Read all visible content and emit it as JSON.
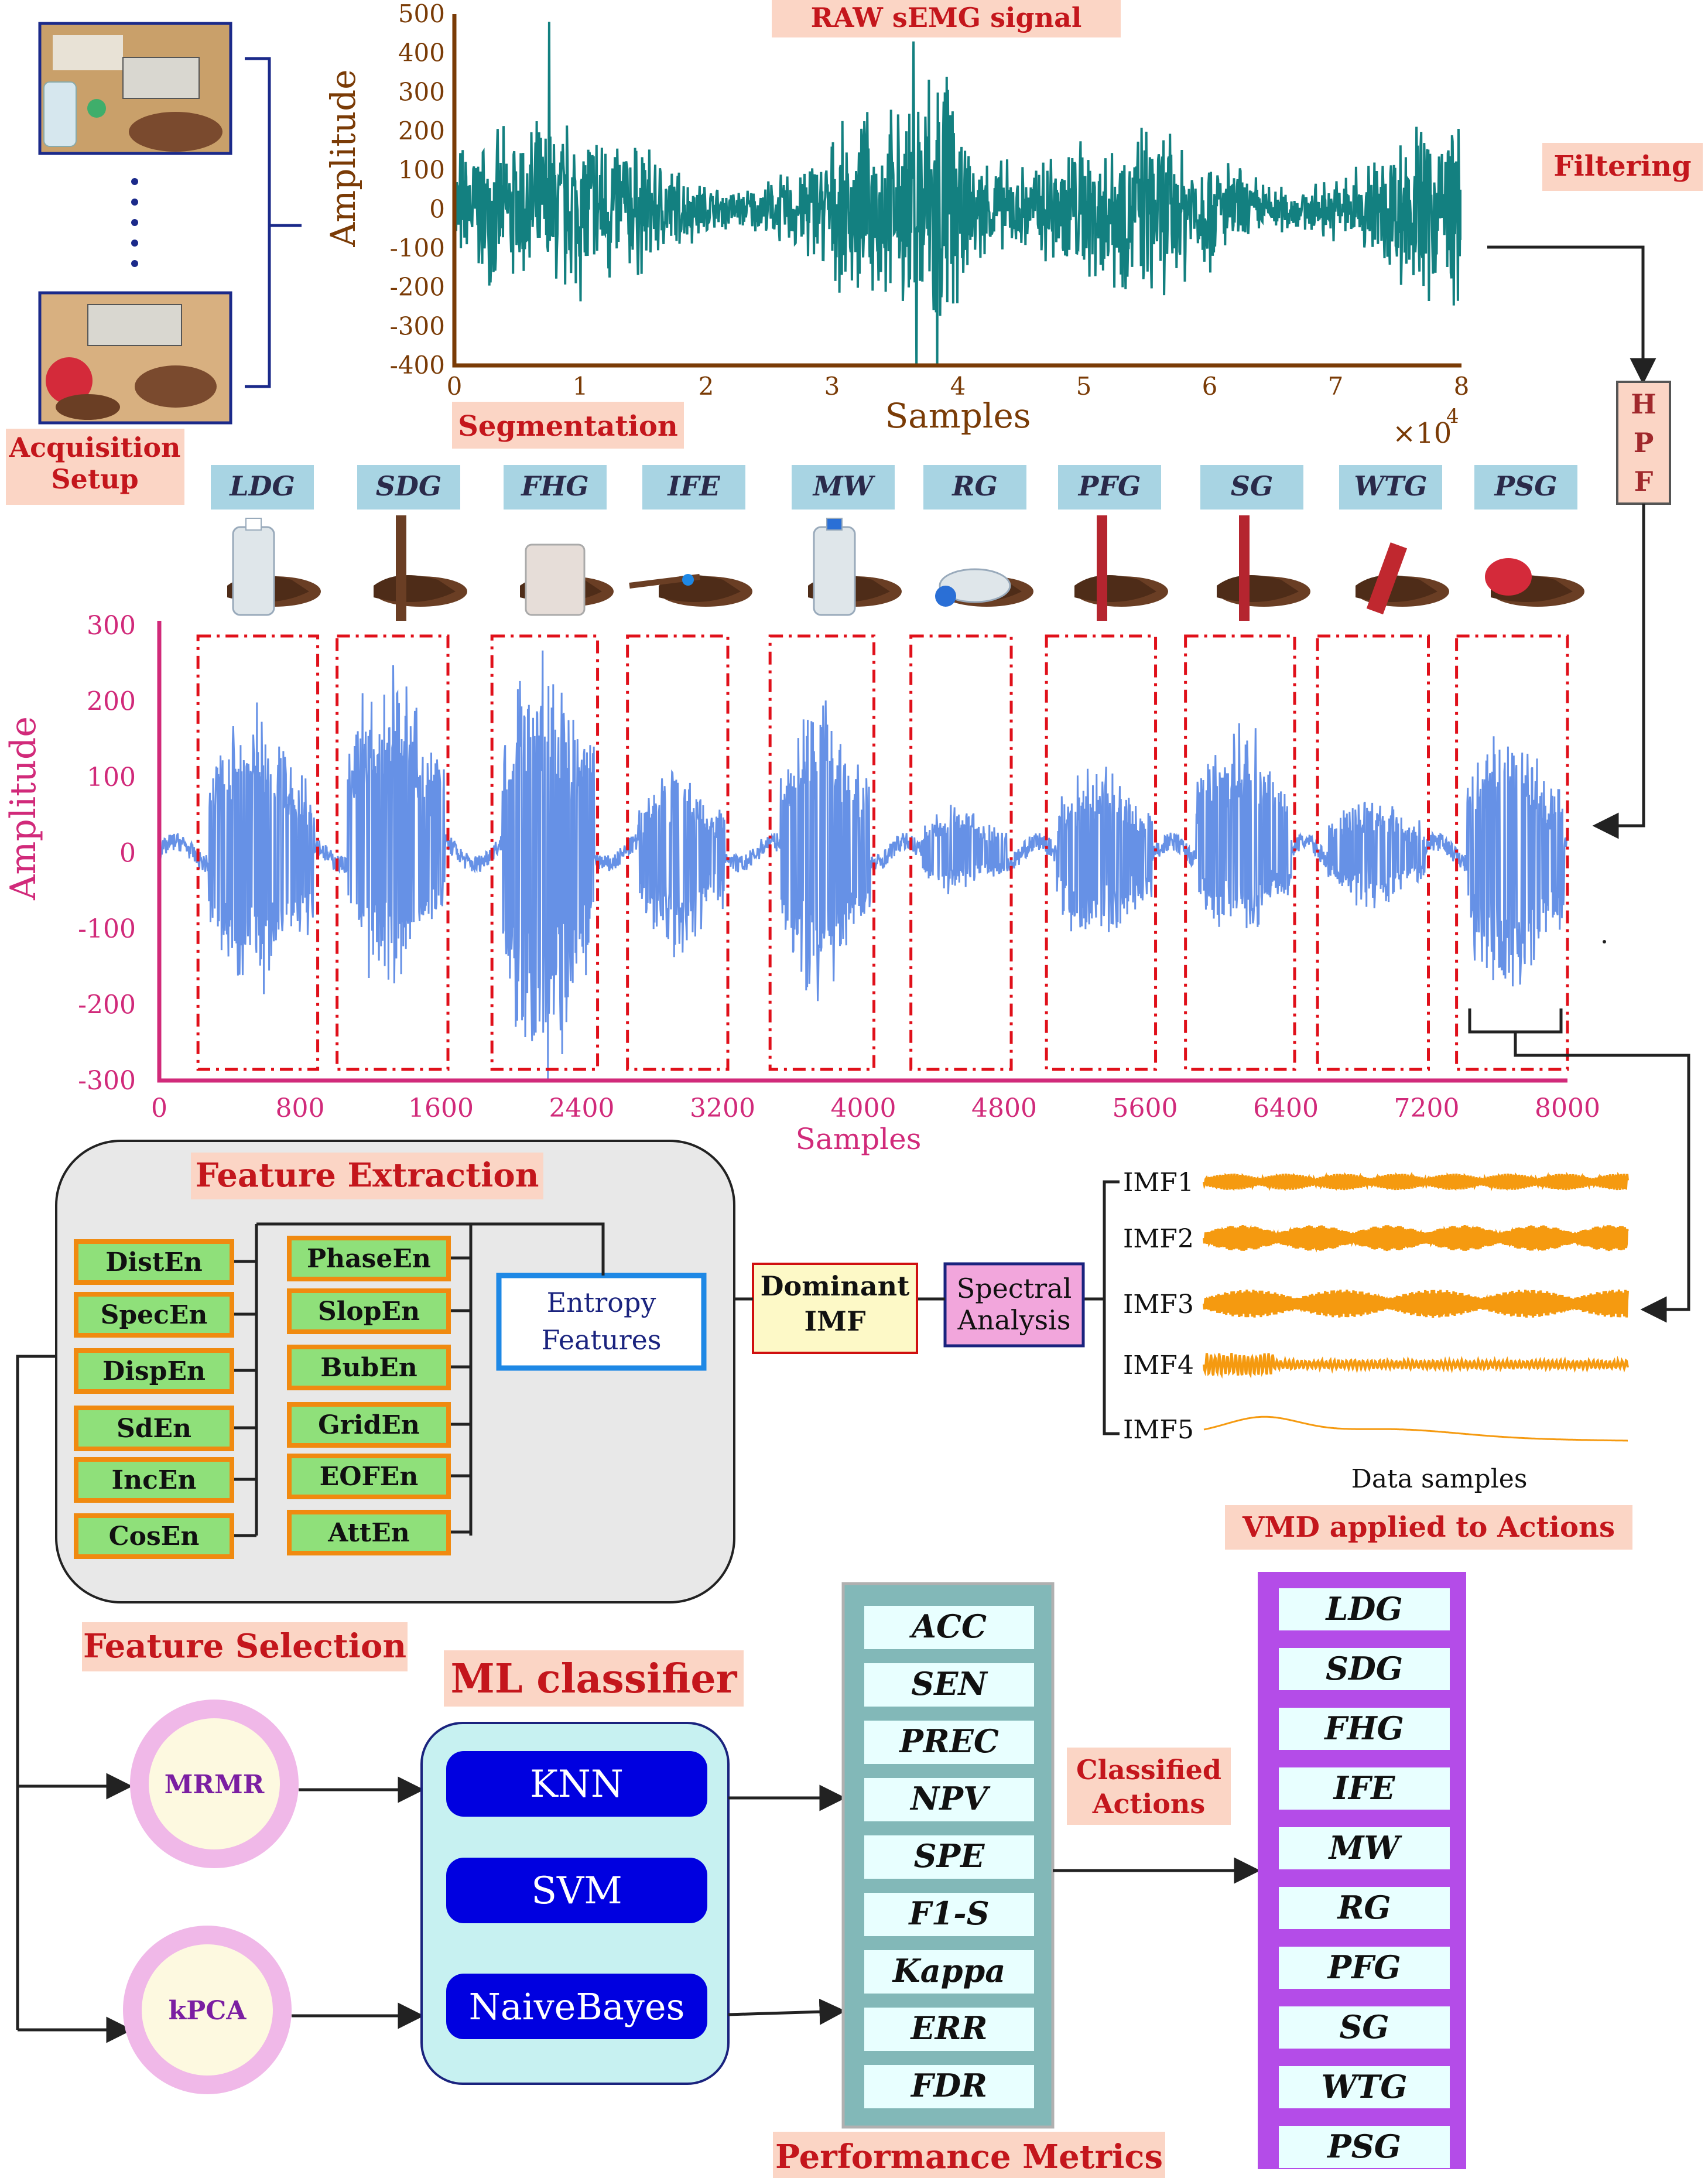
{
  "acquisition": {
    "label_line1": "Acquisition",
    "label_line2": "Setup",
    "photo1": "acquisition-photo-bottle",
    "photo2": "acquisition-photo-ball"
  },
  "raw_chart": {
    "title": "RAW sEMG signal",
    "ylabel": "Amplitude",
    "xlabel": "Samples",
    "x_multiplier": "×10",
    "x_multiplier_exp": "4",
    "yticks": [
      "500",
      "400",
      "300",
      "200",
      "100",
      "0",
      "-100",
      "-200",
      "-300",
      "-400"
    ],
    "xticks": [
      "0",
      "1",
      "2",
      "3",
      "4",
      "5",
      "6",
      "7",
      "8"
    ],
    "color": "#138080",
    "axis_color": "#7a3b06"
  },
  "filtering": {
    "label": "Filtering",
    "hpf_letters": [
      "H",
      "P",
      "F"
    ]
  },
  "segmentation": {
    "label": "Segmentation"
  },
  "actions": [
    "LDG",
    "SDG",
    "FHG",
    "IFE",
    "MW",
    "RG",
    "PFG",
    "SG",
    "WTG",
    "PSG"
  ],
  "seg_chart": {
    "ylabel": "Amplitude",
    "xlabel": "Samples",
    "yticks": [
      "300",
      "200",
      "100",
      "0",
      "-100",
      "-200",
      "-300"
    ],
    "xticks": [
      "0",
      "800",
      "1600",
      "2400",
      "3200",
      "4000",
      "4800",
      "5600",
      "6400",
      "7200",
      "8000"
    ],
    "axis_color": "#d12a7a",
    "signal_color": "#6691e6",
    "box_color": "#e0101a"
  },
  "chart_data": {
    "type": "line",
    "title": "",
    "xlabel": "Samples",
    "ylabel": "Amplitude",
    "xlim": [
      0,
      8000
    ],
    "ylim": [
      -300,
      300
    ],
    "segments": [
      {
        "name": "LDG",
        "start": 280,
        "end": 880,
        "peak": [
          190,
          -190
        ]
      },
      {
        "name": "SDG",
        "start": 1070,
        "end": 1620,
        "peak": [
          250,
          -175
        ]
      },
      {
        "name": "FHG",
        "start": 1950,
        "end": 2470,
        "peak": [
          275,
          -300
        ]
      },
      {
        "name": "IFE",
        "start": 2720,
        "end": 3210,
        "peak": [
          115,
          -135
        ]
      },
      {
        "name": "MW",
        "start": 3530,
        "end": 4040,
        "peak": [
          220,
          -195
        ]
      },
      {
        "name": "RG",
        "start": 4330,
        "end": 4820,
        "peak": [
          65,
          -55
        ]
      },
      {
        "name": "PFG",
        "start": 5100,
        "end": 5640,
        "peak": [
          115,
          -125
        ]
      },
      {
        "name": "SG",
        "start": 5890,
        "end": 6430,
        "peak": [
          180,
          -110
        ]
      },
      {
        "name": "WTG",
        "start": 6640,
        "end": 7190,
        "peak": [
          75,
          -70
        ]
      },
      {
        "name": "PSG",
        "start": 7430,
        "end": 7980,
        "peak": [
          165,
          -205
        ]
      }
    ]
  },
  "vmd": {
    "imfs": [
      "IMF1",
      "IMF2",
      "IMF3",
      "IMF4",
      "IMF5"
    ],
    "xlabel": "Data samples",
    "label": "VMD applied to Actions",
    "color": "#f59a10"
  },
  "spectral": {
    "line1": "Spectral",
    "line2": "Analysis"
  },
  "dominant": {
    "line1": "Dominant",
    "line2": "IMF"
  },
  "entropy": {
    "line1": "Entropy",
    "line2": "Features"
  },
  "feature_extraction": {
    "title": "Feature Extraction",
    "left": [
      "DistEn",
      "SpecEn",
      "DispEn",
      "SdEn",
      "IncEn",
      "CosEn"
    ],
    "right": [
      "PhaseEn",
      "SlopEn",
      "BubEn",
      "GridEn",
      "EOFEn",
      "AttEn"
    ]
  },
  "feature_selection": {
    "title": "Feature Selection",
    "methods": [
      "MRMR",
      "kPCA"
    ]
  },
  "ml": {
    "title": "ML classifier",
    "classifiers": [
      "KNN",
      "SVM",
      "NaiveBayes"
    ]
  },
  "metrics": {
    "title": "Performance Metrics",
    "items": [
      "ACC",
      "SEN",
      "PREC",
      "NPV",
      "SPE",
      "F1-S",
      "Kappa",
      "ERR",
      "FDR"
    ]
  },
  "classified": {
    "line1": "Classified",
    "line2": "Actions",
    "items": [
      "LDG",
      "SDG",
      "FHG",
      "IFE",
      "MW",
      "RG",
      "PFG",
      "SG",
      "WTG",
      "PSG"
    ]
  },
  "colors": {
    "label_bg": "#fbd5c5",
    "label_text": "#c4161c",
    "action_bg": "#a8d4e3",
    "action_text": "#2a2a4a",
    "entropy_item_fill": "#8fe07a",
    "entropy_item_stroke": "#f08a10",
    "ml_panel": "#c7f1f1",
    "ml_button": "#0000e0",
    "metric_frame": "#82b8b8",
    "class_frame": "#b44ce8"
  }
}
